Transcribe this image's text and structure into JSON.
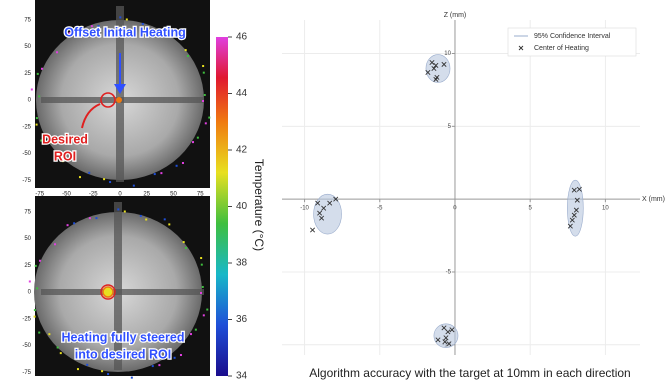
{
  "chart_data": {
    "type": "scatter",
    "x_label": "X (mm)",
    "y_label": "Z (mm)",
    "caption": "Algorithm accuracy with the target at 10mm in each direction",
    "xlim": [
      -11.5,
      12.3
    ],
    "ylim": [
      -10.7,
      12.3
    ],
    "xticks": [
      -10,
      -5,
      0,
      5,
      10
    ],
    "yticks": [
      -10,
      -5,
      5,
      10
    ],
    "grid": true,
    "legend": "top-right",
    "series": [
      {
        "name": "95% Confidence Interval",
        "color": "#b8c7de",
        "x": [
          -1.13,
          -8.47,
          8.0,
          -0.6
        ],
        "values": [
          8.97,
          -1.03,
          -0.62,
          -9.38
        ],
        "x_radius": [
          0.8,
          0.93,
          0.53,
          0.8
        ],
        "radius": [
          0.96,
          1.37,
          1.92,
          0.82
        ]
      },
      {
        "name": "Center of Heating",
        "color": "#333333",
        "x": [
          -1.53,
          -1.4,
          -1.27,
          -1.8,
          -1.2,
          -1.27,
          -0.73,
          -9.13,
          -8.73,
          -8.33,
          -7.93,
          -9.0,
          -8.87,
          -9.47,
          7.93,
          8.27,
          8.13,
          8.07,
          7.93,
          7.8,
          7.67,
          -0.73,
          -0.47,
          -0.2,
          -0.6,
          -1.13,
          -0.4,
          -0.67
        ],
        "values": [
          9.38,
          8.97,
          9.18,
          8.7,
          8.36,
          8.22,
          9.25,
          -0.27,
          -0.62,
          -0.27,
          0,
          -0.96,
          -1.3,
          -2.12,
          0.62,
          0.68,
          -0.07,
          -0.75,
          -1.1,
          -1.44,
          -1.85,
          -8.84,
          -9.11,
          -8.97,
          -9.52,
          -9.66,
          -9.93,
          -9.79
        ]
      }
    ]
  },
  "images": {
    "panels": [
      {
        "lines": [
          "Offset Initial Heating"
        ],
        "callout": [
          "Desired",
          "ROI"
        ],
        "yticks": [
          75,
          50,
          25,
          0,
          -25,
          -50,
          -75
        ],
        "xticks": [
          -75,
          -50,
          -25,
          0,
          25,
          50,
          75
        ]
      },
      {
        "lines": [
          "Heating fully steered",
          "into desired ROI"
        ],
        "yticks": [
          75,
          50,
          25,
          0,
          -25,
          -50,
          -75
        ]
      }
    ],
    "colorbar": {
      "label": "Temperature (°C)",
      "lim": [
        34,
        46
      ],
      "ticks": [
        34,
        36,
        38,
        40,
        42,
        44,
        46
      ]
    }
  }
}
